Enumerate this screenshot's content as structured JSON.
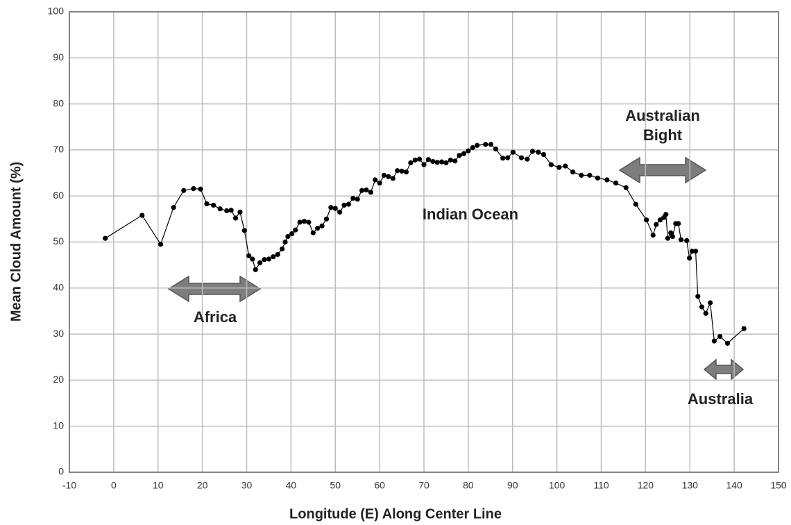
{
  "chart_data": {
    "type": "line",
    "x_label": "Longitude (E) Along Center Line",
    "y_label": "Mean Cloud Amount (%)",
    "annotations": [
      [
        "Africa"
      ],
      [
        "Indian Ocean"
      ],
      [
        "Australian",
        "Bight"
      ],
      [
        "Australia"
      ]
    ],
    "color": "#000000",
    "grid": true,
    "xlim": [
      -10,
      150
    ],
    "ylim": [
      0,
      100
    ],
    "xticks": [
      -10,
      0,
      10,
      20,
      30,
      40,
      50,
      60,
      70,
      80,
      90,
      100,
      110,
      120,
      130,
      140,
      150
    ],
    "yticks": [
      0,
      10,
      20,
      30,
      40,
      50,
      60,
      70,
      80,
      90,
      100
    ],
    "x": [
      -1.9,
      6.4,
      10.6,
      13.5,
      15.8,
      18,
      19.6,
      21,
      22.5,
      24,
      25.5,
      26.5,
      27.5,
      28.5,
      29.5,
      30.5,
      31.3,
      32,
      33,
      34,
      35,
      36,
      37,
      38,
      38.7,
      39.3,
      40.2,
      41,
      42,
      43,
      44,
      45,
      46,
      47,
      48,
      49,
      50,
      51,
      52,
      53,
      54,
      55,
      56,
      57,
      58,
      59,
      60,
      61,
      62,
      63,
      64,
      65,
      66,
      67,
      68,
      69,
      70,
      71,
      72,
      73,
      74,
      75,
      76,
      77,
      78,
      79,
      80,
      81,
      82,
      83.9,
      85.1,
      86.2,
      87.8,
      88.9,
      90.1,
      92,
      93.3,
      94.5,
      95.8,
      97,
      98.7,
      100.5,
      101.9,
      103.6,
      105.5,
      107.4,
      109.2,
      111.3,
      113.3,
      115.6,
      117.8,
      120.2,
      121.7,
      122.4,
      123.3,
      124.1,
      124.6,
      125,
      125.7,
      126.1,
      126.8,
      127.4,
      128,
      129.3,
      129.9,
      130.5,
      131.3,
      131.8,
      132.7,
      133.6,
      134.6,
      135.5,
      136.8,
      138.5,
      142.2
    ],
    "values": [
      50.8,
      55.8,
      49.5,
      57.5,
      61.2,
      61.6,
      61.5,
      58.3,
      58,
      57.2,
      56.8,
      56.9,
      55.2,
      56.5,
      52.5,
      47,
      46.3,
      44,
      45.5,
      46.2,
      46.3,
      46.8,
      47.3,
      48.5,
      50,
      51.2,
      51.8,
      52.6,
      54.3,
      54.5,
      54.3,
      52,
      53,
      53.5,
      55,
      57.5,
      57.3,
      56.5,
      58,
      58.2,
      59.5,
      59.3,
      61.2,
      61.3,
      60.8,
      63.5,
      62.8,
      64.5,
      64.2,
      63.8,
      65.5,
      65.4,
      65.2,
      67.2,
      67.8,
      68,
      66.8,
      67.9,
      67.5,
      67.3,
      67.4,
      67.2,
      67.8,
      67.6,
      68.8,
      69.2,
      69.8,
      70.5,
      71,
      71.2,
      71.2,
      70.2,
      68.2,
      68.3,
      69.5,
      68.3,
      68,
      69.7,
      69.5,
      69,
      66.8,
      66.2,
      66.5,
      65.2,
      64.5,
      64.5,
      63.9,
      63.5,
      62.8,
      61.8,
      58.2,
      54.8,
      51.5,
      53.8,
      54.8,
      55.3,
      56,
      50.8,
      52,
      51.2,
      54,
      54,
      50.5,
      50.3,
      46.5,
      48,
      48,
      38.2,
      35.9,
      34.5,
      36.8,
      28.5,
      29.5,
      28,
      31.2
    ]
  }
}
